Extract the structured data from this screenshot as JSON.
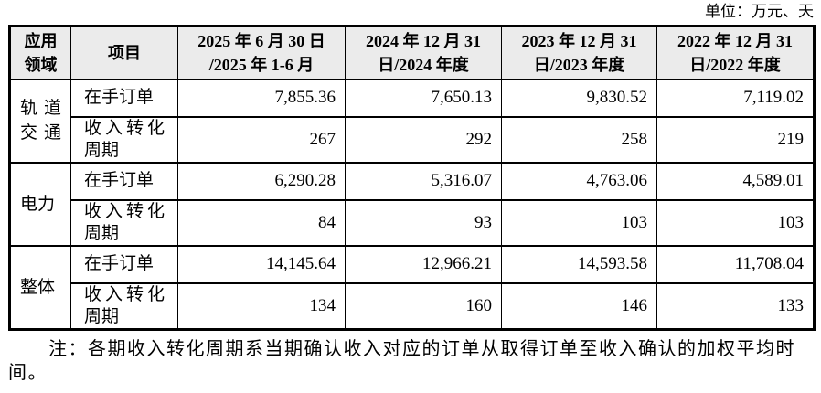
{
  "unit_label": "单位：万元、天",
  "table": {
    "headers": {
      "area": "应用\n领域",
      "item": "项目",
      "period_2025": "2025 年 6 月 30 日\n/2025 年 1-6 月",
      "period_2024": "2024 年 12 月 31\n日/2024 年度",
      "period_2023": "2023 年 12 月 31\n日/2023 年度",
      "period_2022": "2022 年 12 月 31\n日/2022 年度"
    },
    "groups": [
      {
        "area": "轨道交通",
        "rows": [
          {
            "item": "在手订单",
            "values": [
              "7,855.36",
              "7,650.13",
              "9,830.52",
              "7,119.02"
            ]
          },
          {
            "item": "收入转化周期",
            "values": [
              "267",
              "292",
              "258",
              "219"
            ]
          }
        ]
      },
      {
        "area": "电力",
        "rows": [
          {
            "item": "在手订单",
            "values": [
              "6,290.28",
              "5,316.07",
              "4,763.06",
              "4,589.01"
            ]
          },
          {
            "item": "收入转化周期",
            "values": [
              "84",
              "93",
              "103",
              "103"
            ]
          }
        ]
      },
      {
        "area": "整体",
        "rows": [
          {
            "item": "在手订单",
            "values": [
              "14,145.64",
              "12,966.21",
              "14,593.58",
              "11,708.04"
            ]
          },
          {
            "item": "收入转化周期",
            "values": [
              "134",
              "160",
              "146",
              "133"
            ]
          }
        ]
      }
    ]
  },
  "note": "注：各期收入转化周期系当期确认收入对应的订单从取得订单至收入确认的加权平均时间。",
  "colors": {
    "header_bg": "#ebebeb",
    "border": "#000000",
    "text": "#000000"
  }
}
